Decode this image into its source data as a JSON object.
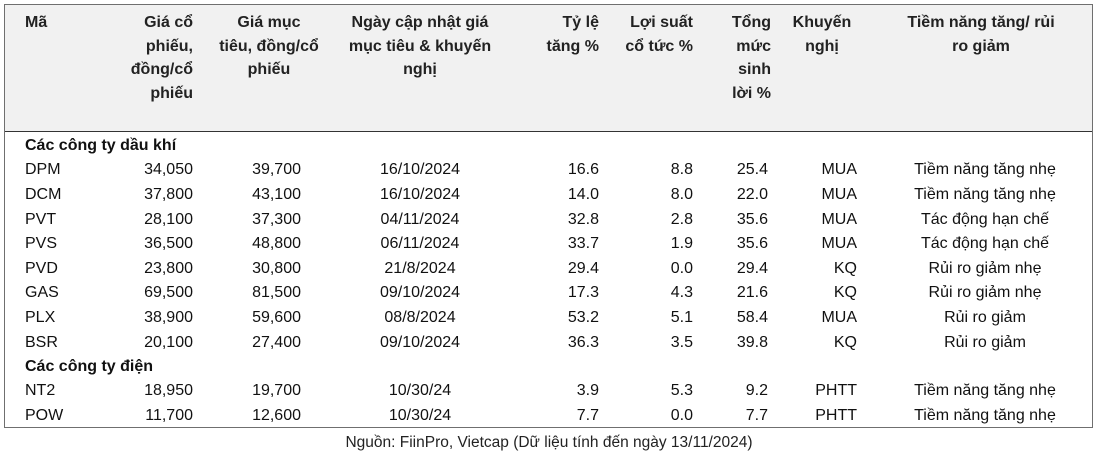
{
  "headers": {
    "ma": "Mã",
    "gia_cp": "Giá cổ phiếu, đồng/cổ phiếu",
    "gia_mt": "Giá mục tiêu, đồng/cổ phiếu",
    "ngay": "Ngày cập nhật giá mục tiêu & khuyến nghị",
    "ty_le": "Tỷ lệ tăng %",
    "loi_suat": "Lợi suất cổ tức %",
    "tong_muc": "Tổng mức sinh lời %",
    "khuyen_nghi": "Khuyến nghị",
    "tiem_nang": "Tiềm năng tăng/ rủi ro giảm"
  },
  "groups": [
    {
      "title": "Các công ty dầu khí",
      "rows": [
        {
          "ma": "DPM",
          "gia_cp": "34,050",
          "gia_mt": "39,700",
          "ngay": "16/10/2024",
          "ty_le": "16.6",
          "loi_suat": "8.8",
          "tong_muc": "25.4",
          "khuyen_nghi": "MUA",
          "tiem_nang": "Tiềm năng tăng nhẹ"
        },
        {
          "ma": "DCM",
          "gia_cp": "37,800",
          "gia_mt": "43,100",
          "ngay": "16/10/2024",
          "ty_le": "14.0",
          "loi_suat": "8.0",
          "tong_muc": "22.0",
          "khuyen_nghi": "MUA",
          "tiem_nang": "Tiềm năng tăng nhẹ"
        },
        {
          "ma": "PVT",
          "gia_cp": "28,100",
          "gia_mt": "37,300",
          "ngay": "04/11/2024",
          "ty_le": "32.8",
          "loi_suat": "2.8",
          "tong_muc": "35.6",
          "khuyen_nghi": "MUA",
          "tiem_nang": "Tác động hạn chế"
        },
        {
          "ma": "PVS",
          "gia_cp": "36,500",
          "gia_mt": "48,800",
          "ngay": "06/11/2024",
          "ty_le": "33.7",
          "loi_suat": "1.9",
          "tong_muc": "35.6",
          "khuyen_nghi": "MUA",
          "tiem_nang": "Tác động hạn chế"
        },
        {
          "ma": "PVD",
          "gia_cp": "23,800",
          "gia_mt": "30,800",
          "ngay": "21/8/2024",
          "ty_le": "29.4",
          "loi_suat": "0.0",
          "tong_muc": "29.4",
          "khuyen_nghi": "KQ",
          "tiem_nang": "Rủi ro giảm nhẹ"
        },
        {
          "ma": "GAS",
          "gia_cp": "69,500",
          "gia_mt": "81,500",
          "ngay": "09/10/2024",
          "ty_le": "17.3",
          "loi_suat": "4.3",
          "tong_muc": "21.6",
          "khuyen_nghi": "KQ",
          "tiem_nang": "Rủi ro giảm nhẹ"
        },
        {
          "ma": "PLX",
          "gia_cp": "38,900",
          "gia_mt": "59,600",
          "ngay": "08/8/2024",
          "ty_le": "53.2",
          "loi_suat": "5.1",
          "tong_muc": "58.4",
          "khuyen_nghi": "MUA",
          "tiem_nang": "Rủi ro giảm"
        },
        {
          "ma": "BSR",
          "gia_cp": "20,100",
          "gia_mt": "27,400",
          "ngay": "09/10/2024",
          "ty_le": "36.3",
          "loi_suat": "3.5",
          "tong_muc": "39.8",
          "khuyen_nghi": "KQ",
          "tiem_nang": "Rủi ro giảm"
        }
      ]
    },
    {
      "title": "Các công ty điện",
      "rows": [
        {
          "ma": "NT2",
          "gia_cp": "18,950",
          "gia_mt": "19,700",
          "ngay": "10/30/24",
          "ty_le": "3.9",
          "loi_suat": "5.3",
          "tong_muc": "9.2",
          "khuyen_nghi": "PHTT",
          "tiem_nang": "Tiềm năng tăng nhẹ"
        },
        {
          "ma": "POW",
          "gia_cp": "11,700",
          "gia_mt": "12,600",
          "ngay": "10/30/24",
          "ty_le": "7.7",
          "loi_suat": "0.0",
          "tong_muc": "7.7",
          "khuyen_nghi": "PHTT",
          "tiem_nang": "Tiềm năng tăng nhẹ"
        }
      ]
    }
  ],
  "source": "Nguồn: FiinPro, Vietcap (Dữ liệu tính đến ngày 13/11/2024)"
}
